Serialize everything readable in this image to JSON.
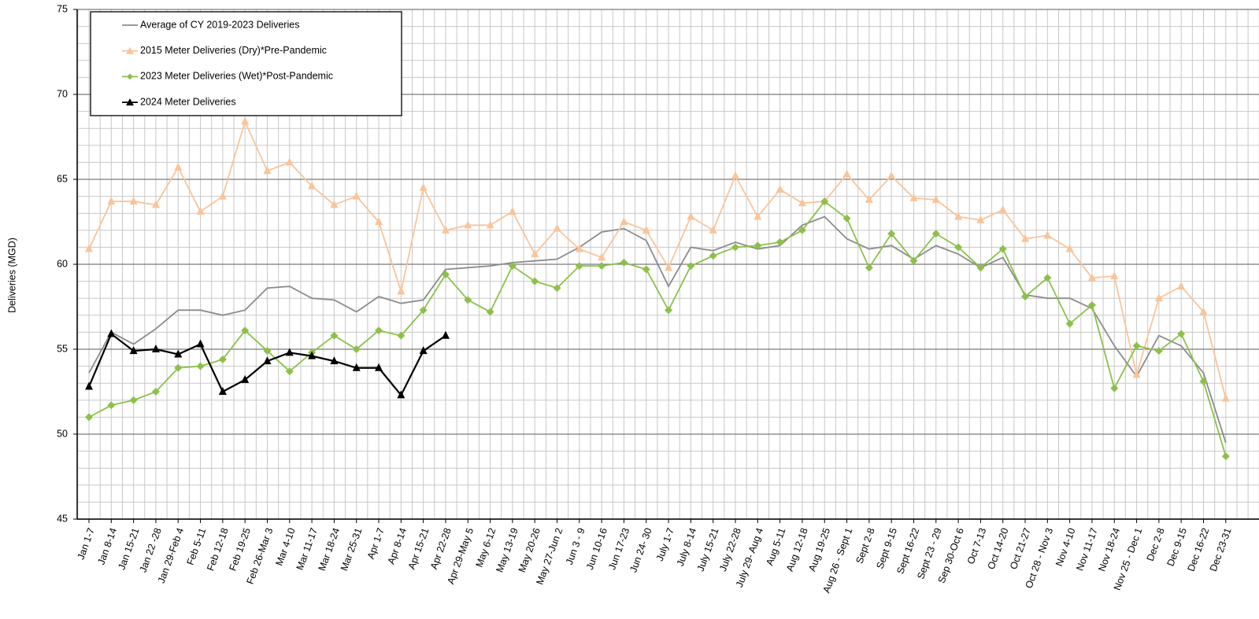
{
  "chart_data": {
    "type": "line",
    "y_label": "Deliveries (MGD)",
    "categories": [
      "Jan 1-7",
      "Jan 8-14",
      "Jan 15-21",
      "Jan 22 -28",
      "Jan 29-Feb 4",
      "Feb 5-11",
      "Feb 12-18",
      "Feb 19-25",
      "Feb 26-Mar 3",
      "Mar 4-10",
      "Mar 11-17",
      "Mar 18-24",
      "Mar 25-31",
      "Apr 1-7",
      "Apr 8-14",
      "Apr 15-21",
      "Apr 22-28",
      "Apr 29-May 5",
      "May 6-12",
      "May 13-19",
      "May 20-26",
      "May 27-Jun 2",
      "Jun 3 - 9",
      "Jun 10-16",
      "Jun 17-23",
      "Jun 24- 30",
      "July 1-7",
      "July 8-14",
      "July 15-21",
      "July 22-28",
      "July 29- Aug 4",
      "Aug 5-11",
      "Aug 12-18",
      "Aug 19-25",
      "Aug 26 - Sept 1",
      "Sept 2-8",
      "Sept 9-15",
      "Sept 16-22",
      "Sept 23 - 29",
      "Sep 30-Oct 6",
      "Oct 7-13",
      "Oct 14-20",
      "Oct 21-27",
      "Oct 28 - Nov 3",
      "Nov 4-10",
      "Nov 11-17",
      "Nov 18-24",
      "Nov 25 - Dec 1",
      "Dec 2-8",
      "Dec 9-15",
      "Dec 16-22",
      "Dec 23-31"
    ],
    "series": [
      {
        "name": "Average of CY 2019-2023 Deliveries",
        "color": "#8c8c8c",
        "marker": "none",
        "values": [
          53.6,
          56.0,
          55.3,
          56.2,
          57.3,
          57.3,
          57.0,
          57.3,
          58.6,
          58.7,
          58.0,
          57.9,
          57.2,
          58.1,
          57.7,
          57.9,
          59.7,
          59.8,
          59.9,
          60.1,
          60.2,
          60.3,
          61.0,
          61.9,
          62.1,
          61.4,
          58.7,
          61.0,
          60.8,
          61.3,
          60.9,
          61.1,
          62.3,
          62.8,
          61.5,
          60.9,
          61.1,
          60.3,
          61.1,
          60.6,
          59.8,
          60.4,
          58.2,
          58.0,
          58.0,
          57.4,
          55.2,
          53.4,
          55.8,
          55.2,
          53.6,
          49.5
        ]
      },
      {
        "name": "2015 Meter Deliveries (Dry)*Pre-Pandemic",
        "color": "#f9c49a",
        "marker": "triangle",
        "values": [
          60.9,
          63.7,
          63.7,
          63.5,
          65.7,
          63.1,
          64.0,
          68.4,
          65.5,
          66.0,
          64.6,
          63.5,
          64.0,
          62.5,
          58.4,
          64.5,
          62.0,
          62.3,
          62.3,
          63.1,
          60.6,
          62.1,
          60.9,
          60.4,
          62.5,
          62.0,
          59.8,
          62.8,
          62.0,
          65.2,
          62.8,
          64.4,
          63.6,
          63.7,
          65.3,
          63.8,
          65.2,
          63.9,
          63.8,
          62.8,
          62.6,
          63.2,
          61.5,
          61.7,
          60.9,
          59.2,
          59.3,
          53.5,
          58.0,
          58.7,
          57.2,
          52.1
        ]
      },
      {
        "name": "2023 Meter Deliveries (Wet)*Post-Pandemic",
        "color": "#8dc04a",
        "marker": "diamond",
        "values": [
          51.0,
          51.7,
          52.0,
          52.5,
          53.9,
          54.0,
          54.4,
          56.1,
          54.9,
          53.7,
          54.8,
          55.8,
          55.0,
          56.1,
          55.8,
          57.3,
          59.4,
          57.9,
          57.2,
          59.9,
          59.0,
          58.6,
          59.9,
          59.9,
          60.1,
          59.7,
          57.3,
          59.9,
          60.5,
          61.0,
          61.1,
          61.3,
          62.0,
          63.7,
          62.7,
          59.8,
          61.8,
          60.2,
          61.8,
          61.0,
          59.8,
          60.9,
          58.1,
          59.2,
          56.5,
          57.6,
          52.7,
          55.2,
          54.9,
          55.9,
          53.1,
          48.7
        ]
      },
      {
        "name": "2024 Meter Deliveries",
        "color": "#000000",
        "marker": "triangle",
        "values": [
          52.8,
          55.9,
          54.9,
          55.0,
          54.7,
          55.3,
          52.5,
          53.2,
          54.3,
          54.8,
          54.6,
          54.3,
          53.9,
          53.9,
          52.3,
          54.9,
          55.8,
          null,
          null,
          null,
          null,
          null,
          null,
          null,
          null,
          null,
          null,
          null,
          null,
          null,
          null,
          null,
          null,
          null,
          null,
          null,
          null,
          null,
          null,
          null,
          null,
          null,
          null,
          null,
          null,
          null,
          null,
          null,
          null,
          null,
          null,
          null
        ]
      }
    ],
    "ylim": [
      45,
      75
    ],
    "yticks": [
      45,
      50,
      55,
      60,
      65,
      70,
      75
    ],
    "grid": true,
    "legend": "upper left"
  }
}
